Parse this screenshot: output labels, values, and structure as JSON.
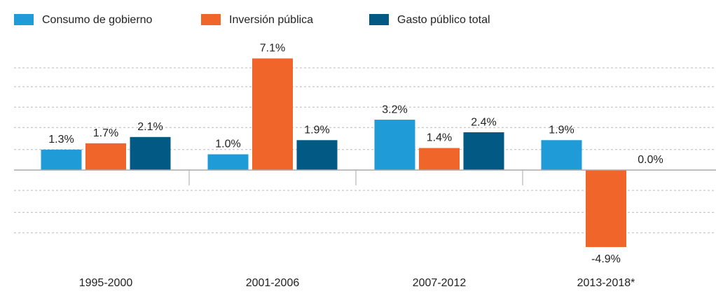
{
  "chart_data": {
    "type": "bar",
    "categories": [
      "1995-2000",
      "2001-2006",
      "2007-2012",
      "2013-2018*"
    ],
    "series": [
      {
        "name": "Consumo de gobierno",
        "color": "#1f9bd7",
        "values": [
          1.3,
          1.0,
          3.2,
          1.9
        ],
        "value_labels": [
          "1.3%",
          "1.0%",
          "3.2%",
          "1.9%"
        ]
      },
      {
        "name": "Inversión pública",
        "color": "#f0652a",
        "values": [
          1.7,
          7.1,
          1.4,
          -4.9
        ],
        "value_labels": [
          "1.7%",
          "7.1%",
          "1.4%",
          "-4.9%"
        ]
      },
      {
        "name": "Gasto público total",
        "color": "#025a84",
        "values": [
          2.1,
          1.9,
          2.4,
          0.0
        ],
        "value_labels": [
          "2.1%",
          "1.9%",
          "2.4%",
          "0.0%"
        ]
      }
    ],
    "ylim": [
      -5.3,
      7.7
    ],
    "yticks": [
      -4,
      -2.7,
      -1.3,
      1.3,
      2.7,
      4,
      5.3,
      6.5
    ],
    "grid": true
  }
}
